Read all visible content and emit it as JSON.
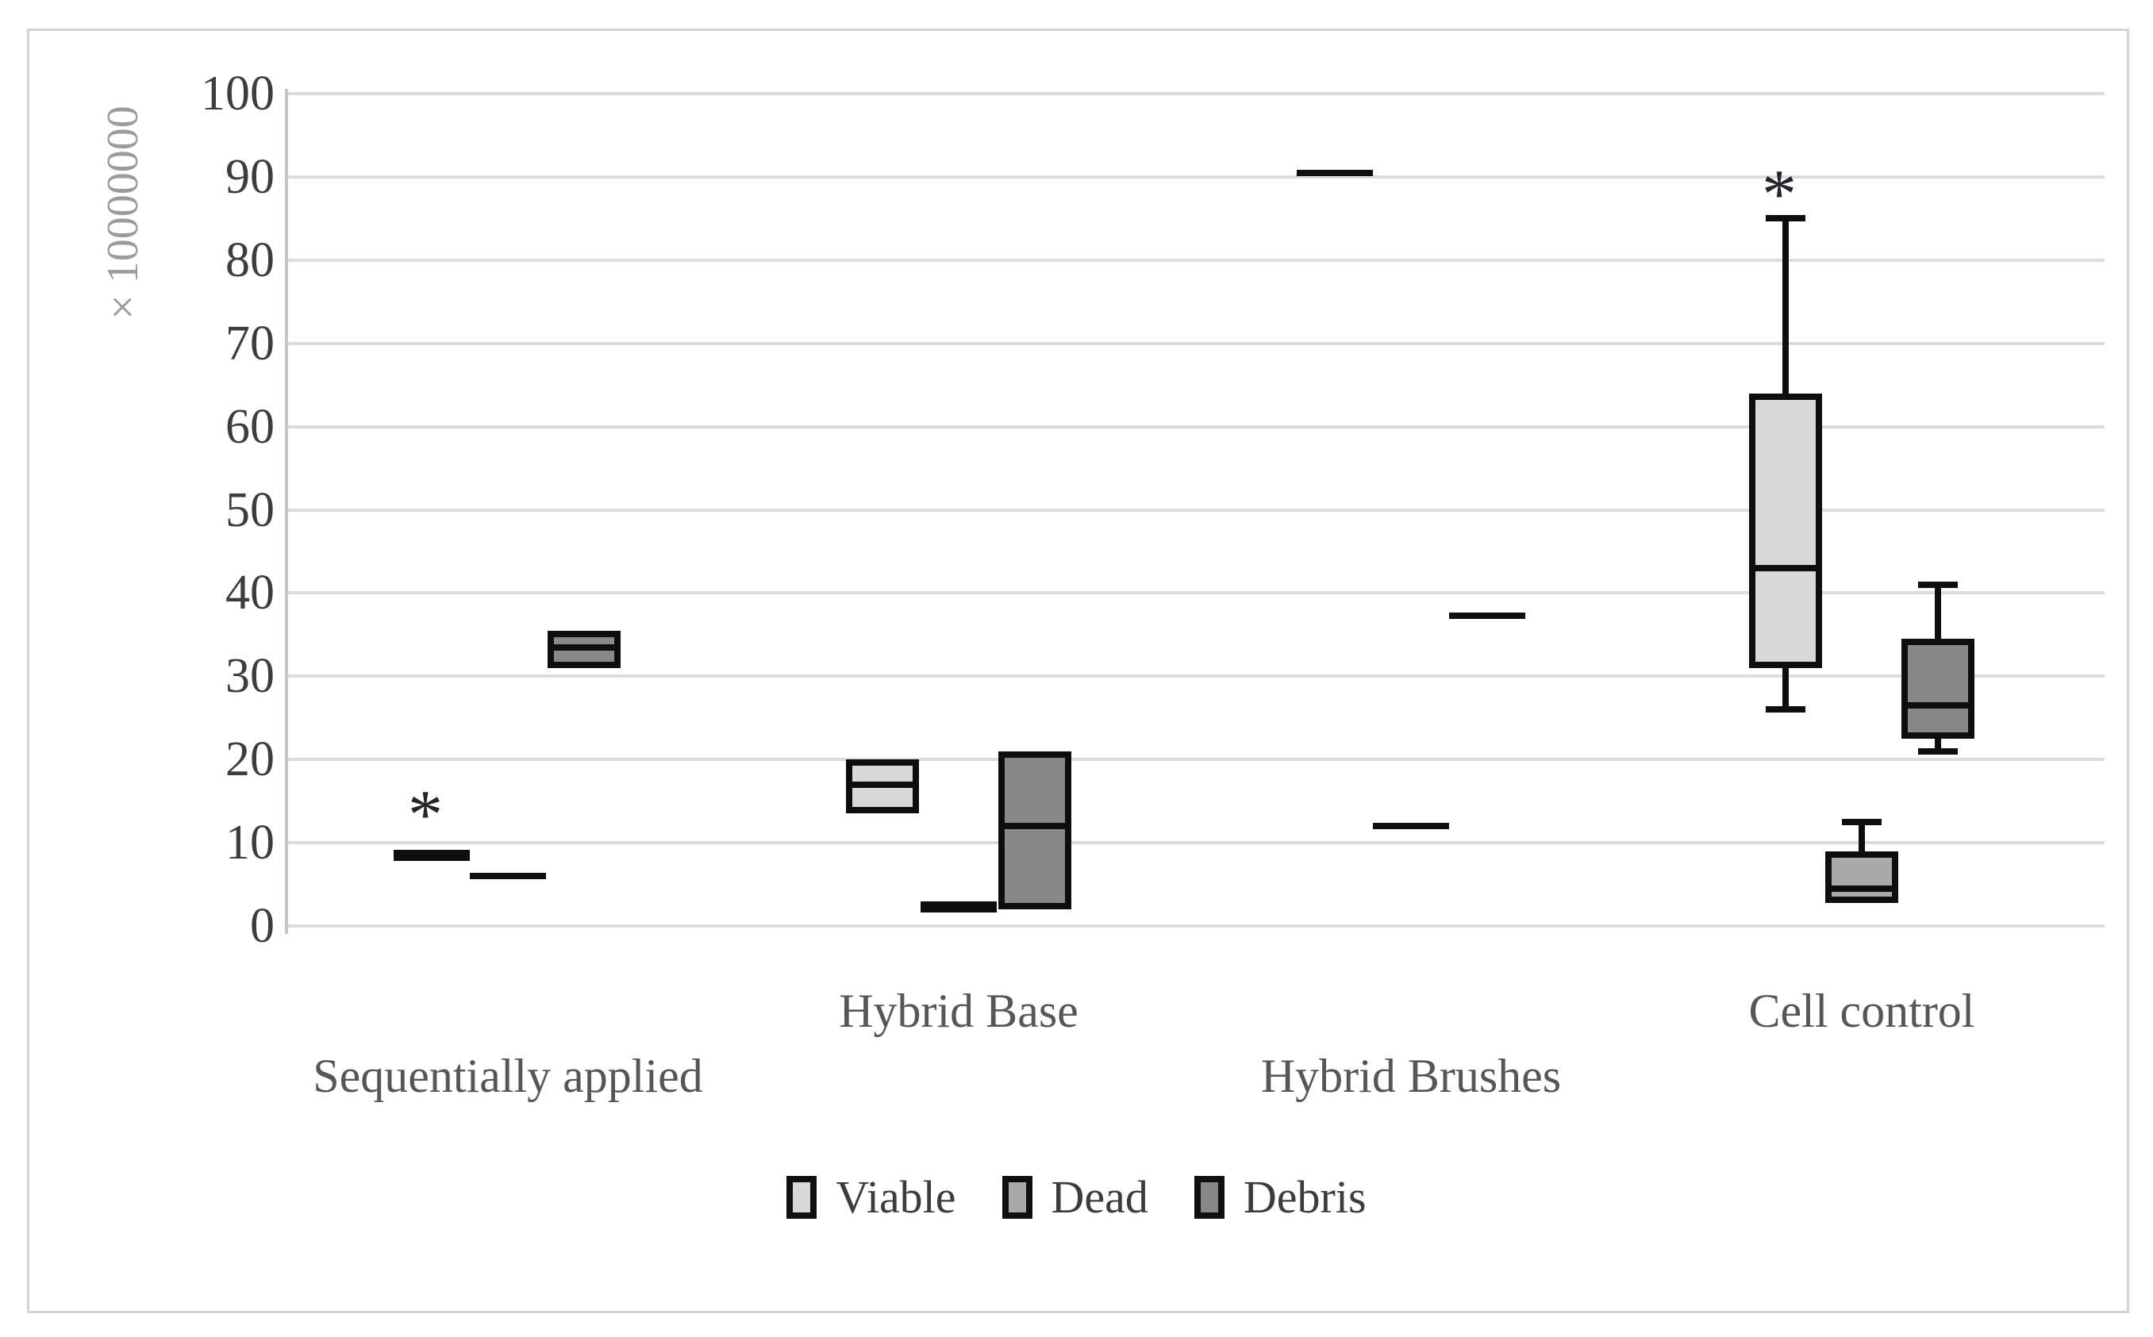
{
  "figure": {
    "background": "#ffffff",
    "border_color": "#d4d4d4",
    "gridline_color": "#dcdcdc",
    "axis_line_color": "#c6c6c6",
    "box_border_color": "#0e0e0e"
  },
  "y_axis": {
    "label": "× 10000000",
    "ticks": [
      "100",
      "90",
      "80",
      "70",
      "60",
      "50",
      "40",
      "30",
      "20",
      "10",
      "0"
    ],
    "min": 0,
    "max": 100
  },
  "legend": {
    "items": [
      {
        "label": "Viable",
        "color": "#d9d9d9"
      },
      {
        "label": "Dead",
        "color": "#a9a9a9"
      },
      {
        "label": "Debris",
        "color": "#888888"
      }
    ]
  },
  "chart_data": {
    "type": "boxplot",
    "title": "",
    "ylabel": "× 10000000",
    "ylim": [
      0,
      100
    ],
    "grid": true,
    "legend_position": "bottom",
    "outlier_marker": "*",
    "categories": [
      "Sequentially applied",
      "Hybrid Base",
      "Hybrid Brushes",
      "Cell control"
    ],
    "category_label_rows": [
      1,
      0,
      1,
      0
    ],
    "series": [
      {
        "name": "Viable",
        "fill": "#d9d9d9",
        "points": [
          {
            "category": "Sequentially applied",
            "type": "line",
            "value": 8.5,
            "thick": true,
            "outlier": 14.5
          },
          {
            "category": "Hybrid Base",
            "type": "box",
            "q1": 13.5,
            "median": 17,
            "q3": 20
          },
          {
            "category": "Hybrid Brushes",
            "type": "line",
            "value": 90.5
          },
          {
            "category": "Cell control",
            "type": "box",
            "q1": 31,
            "median": 43,
            "q3": 64,
            "whisker_low": 26,
            "whisker_high": 85,
            "outlier": 89
          }
        ]
      },
      {
        "name": "Dead",
        "fill": "#a9a9a9",
        "points": [
          {
            "category": "Sequentially applied",
            "type": "line",
            "value": 6
          },
          {
            "category": "Hybrid Base",
            "type": "line",
            "value": 2.3,
            "thick": true
          },
          {
            "category": "Hybrid Brushes",
            "type": "line",
            "value": 12
          },
          {
            "category": "Cell control",
            "type": "box",
            "q1": 2.8,
            "median": 4.5,
            "q3": 9,
            "whisker_high": 12.5
          }
        ]
      },
      {
        "name": "Debris",
        "fill": "#888888",
        "points": [
          {
            "category": "Sequentially applied",
            "type": "box",
            "q1": 31,
            "median": 33.5,
            "q3": 35.5
          },
          {
            "category": "Hybrid Base",
            "type": "box",
            "q1": 2,
            "median": 12,
            "q3": 21
          },
          {
            "category": "Hybrid Brushes",
            "type": "line",
            "value": 37.3
          },
          {
            "category": "Cell control",
            "type": "box",
            "q1": 22.5,
            "median": 26.5,
            "q3": 34.5,
            "whisker_low": 21,
            "whisker_high": 41
          }
        ]
      }
    ]
  }
}
